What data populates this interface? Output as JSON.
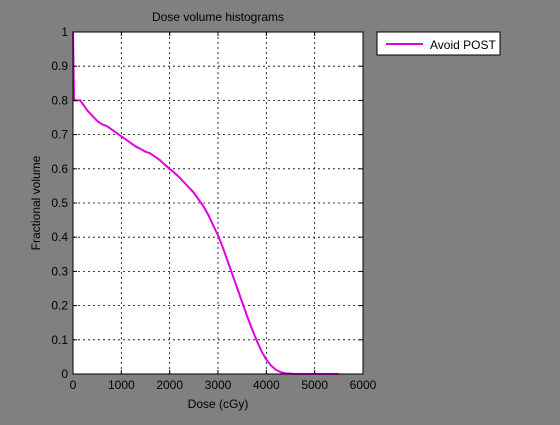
{
  "figure": {
    "background": "#808080"
  },
  "chart_data": {
    "type": "line",
    "title": "Dose volume histograms",
    "xlabel": "Dose (cGy)",
    "ylabel": "Fractional volume",
    "xlim": [
      0,
      6000
    ],
    "ylim": [
      0,
      1
    ],
    "xticks": [
      "0",
      "1000",
      "2000",
      "3000",
      "4000",
      "5000",
      "6000"
    ],
    "xtick_values": [
      0,
      1000,
      2000,
      3000,
      4000,
      5000,
      6000
    ],
    "yticks": [
      "0",
      "0.1",
      "0.2",
      "0.3",
      "0.4",
      "0.5",
      "0.6",
      "0.7",
      "0.8",
      "0.9",
      "1"
    ],
    "ytick_values": [
      0,
      0.1,
      0.2,
      0.3,
      0.4,
      0.5,
      0.6,
      0.7,
      0.8,
      0.9,
      1
    ],
    "grid": true,
    "legend_position": "outside-top-right",
    "series": [
      {
        "name": "Avoid POST",
        "color": "#E000E0",
        "x": [
          0,
          20,
          30,
          100,
          150,
          200,
          300,
          400,
          500,
          600,
          700,
          800,
          900,
          1000,
          1100,
          1200,
          1300,
          1400,
          1500,
          1600,
          1700,
          1800,
          1900,
          2000,
          2100,
          2200,
          2300,
          2400,
          2500,
          2600,
          2700,
          2800,
          2900,
          3000,
          3100,
          3200,
          3300,
          3400,
          3500,
          3600,
          3700,
          3800,
          3900,
          4000,
          4100,
          4200,
          4300,
          4400,
          4500,
          4600,
          4800,
          5000,
          5200,
          5500
        ],
        "y": [
          1.0,
          0.81,
          0.8,
          0.8,
          0.8,
          0.79,
          0.77,
          0.755,
          0.74,
          0.73,
          0.725,
          0.715,
          0.705,
          0.695,
          0.685,
          0.675,
          0.665,
          0.658,
          0.65,
          0.645,
          0.635,
          0.625,
          0.612,
          0.6,
          0.588,
          0.575,
          0.56,
          0.545,
          0.53,
          0.51,
          0.49,
          0.465,
          0.435,
          0.405,
          0.37,
          0.33,
          0.29,
          0.25,
          0.21,
          0.17,
          0.133,
          0.098,
          0.067,
          0.042,
          0.024,
          0.012,
          0.005,
          0.002,
          0.001,
          0.0,
          0.0,
          0.0,
          0.0,
          0.0
        ]
      }
    ]
  }
}
